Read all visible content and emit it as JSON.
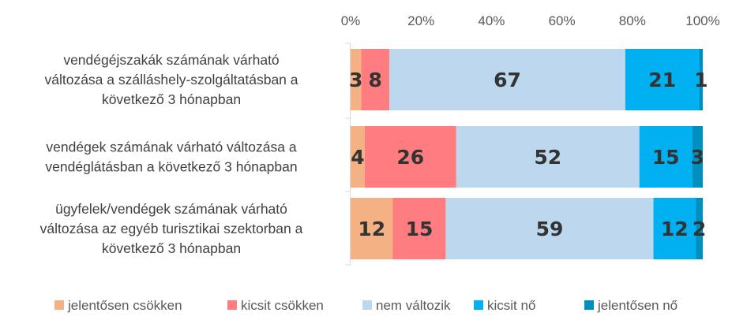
{
  "chart_data": {
    "type": "bar",
    "orientation": "horizontal",
    "stacked": "percent",
    "categories": [
      [
        "vendégéjszakák számának várható",
        "változása a szálláshely-szolgáltatásban a",
        "következő 3 hónapban"
      ],
      [
        "vendégek számának várható változása a",
        "vendéglátásban a következő 3 hónapban"
      ],
      [
        "ügyfelek/vendégek számának várható",
        "változása az egyéb turisztikai szektorban a",
        "következő 3 hónapban"
      ]
    ],
    "series": [
      {
        "name": "jelentősen csökken",
        "color": "#F4B183",
        "values": [
          3,
          4,
          12
        ]
      },
      {
        "name": "kicsit csökken",
        "color": "#FF7C80",
        "values": [
          8,
          26,
          15
        ]
      },
      {
        "name": "nem változik",
        "color": "#BDD7EE",
        "values": [
          67,
          52,
          59
        ]
      },
      {
        "name": "kicsit nő",
        "color": "#00B0F0",
        "values": [
          21,
          15,
          12
        ]
      },
      {
        "name": "jelentősen nő",
        "color": "#0090C0",
        "values": [
          1,
          3,
          2
        ]
      }
    ],
    "x_ticks": [
      "0%",
      "20%",
      "40%",
      "60%",
      "80%",
      "100%"
    ],
    "xlim": [
      0,
      100
    ],
    "axis_position": "top",
    "grid": false,
    "legend": "bottom"
  }
}
